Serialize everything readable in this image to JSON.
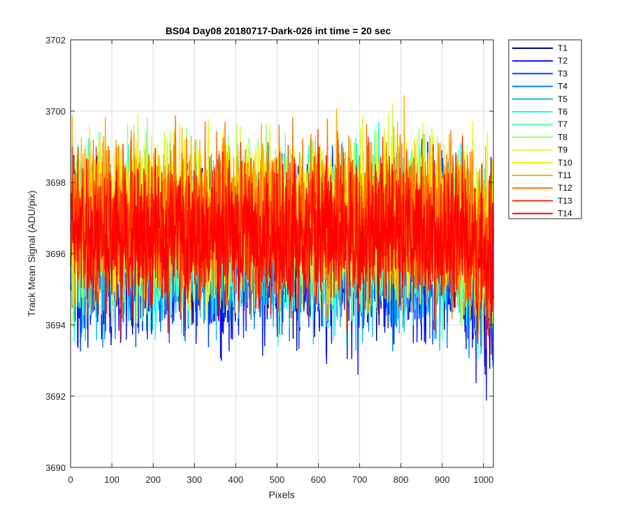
{
  "chart_data": {
    "type": "line",
    "title": "BS04 Day08 20180717-Dark-026 int time = 20 sec",
    "xlabel": "Pixels",
    "ylabel": "Track Mean Signal (ADU/pix)",
    "xlim": [
      0,
      1024
    ],
    "ylim": [
      3690,
      3702
    ],
    "xticks": [
      "0",
      "100",
      "200",
      "300",
      "400",
      "500",
      "600",
      "700",
      "800",
      "900",
      "1000"
    ],
    "yticks": [
      "3690",
      "3692",
      "3694",
      "3696",
      "3698",
      "3700",
      "3702"
    ],
    "grid": true,
    "legend_position": "outside-right-top",
    "series": [
      {
        "name": "T1",
        "color": "#00008f",
        "mean": 3696.2,
        "spread": 1.1
      },
      {
        "name": "T2",
        "color": "#0010ff",
        "mean": 3695.9,
        "spread": 1.2
      },
      {
        "name": "T3",
        "color": "#0040ff",
        "mean": 3696.0,
        "spread": 1.1
      },
      {
        "name": "T4",
        "color": "#0080ff",
        "mean": 3696.1,
        "spread": 1.1
      },
      {
        "name": "T5",
        "color": "#00bfff",
        "mean": 3696.3,
        "spread": 1.1
      },
      {
        "name": "T6",
        "color": "#10ffef",
        "mean": 3696.5,
        "spread": 1.1
      },
      {
        "name": "T7",
        "color": "#50ffaf",
        "mean": 3696.6,
        "spread": 1.1
      },
      {
        "name": "T8",
        "color": "#8fff70",
        "mean": 3696.8,
        "spread": 1.1
      },
      {
        "name": "T9",
        "color": "#cfff30",
        "mean": 3697.0,
        "spread": 1.1
      },
      {
        "name": "T10",
        "color": "#ffef00",
        "mean": 3697.1,
        "spread": 1.1
      },
      {
        "name": "T11",
        "color": "#ffaf00",
        "mean": 3697.0,
        "spread": 1.1
      },
      {
        "name": "T12",
        "color": "#ff7000",
        "mean": 3696.9,
        "spread": 1.1
      },
      {
        "name": "T13",
        "color": "#ff3000",
        "mean": 3696.7,
        "spread": 1.0
      },
      {
        "name": "T14",
        "color": "#ff0000",
        "mean": 3696.5,
        "spread": 1.0
      }
    ]
  }
}
